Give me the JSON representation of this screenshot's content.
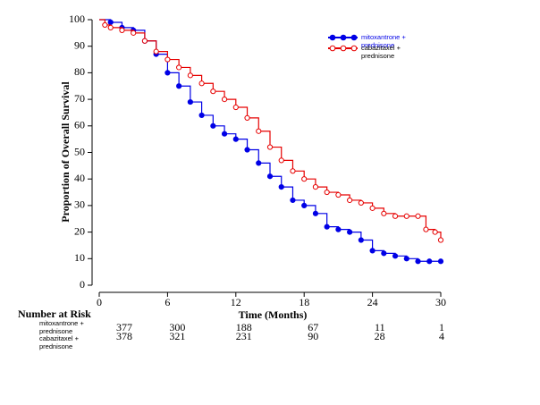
{
  "chart_data": {
    "type": "km",
    "x_label": "Time (Months)",
    "y_label": "Proportion of Overall Survival",
    "xlim": [
      0,
      30
    ],
    "ylim": [
      0,
      100
    ],
    "xticks": [
      0,
      6,
      12,
      18,
      24,
      30
    ],
    "yticks": [
      0,
      10,
      20,
      30,
      40,
      50,
      60,
      70,
      80,
      90,
      100
    ],
    "risk_title": "Number at Risk",
    "risk_times": [
      0,
      6,
      12,
      18,
      24,
      30
    ],
    "series": [
      {
        "name": "mitoxantrone + prednisone",
        "color": "#0000e6",
        "marker": "filled",
        "x": [
          0,
          1,
          2,
          3,
          4,
          5,
          6,
          7,
          8,
          9,
          10,
          11,
          12,
          13,
          14,
          15,
          16,
          17,
          18,
          19,
          20,
          21,
          22,
          23,
          24,
          25,
          26,
          27,
          28,
          29,
          30
        ],
        "values": [
          100,
          99,
          97,
          96,
          92,
          87,
          80,
          75,
          69,
          64,
          60,
          57,
          55,
          51,
          46,
          41,
          37,
          32,
          30,
          27,
          22,
          21,
          20,
          17,
          13,
          12,
          11,
          10,
          9,
          9,
          9
        ],
        "at_risk": [
          377,
          300,
          188,
          67,
          11,
          1
        ]
      },
      {
        "name": "cabazitaxel + prednisone",
        "color": "#e60000",
        "marker": "open",
        "x": [
          0,
          0.5,
          1,
          2,
          3,
          4,
          5,
          6,
          7,
          8,
          9,
          10,
          11,
          12,
          13,
          14,
          15,
          16,
          17,
          18,
          19,
          20,
          21,
          22,
          23,
          24,
          25,
          26,
          27,
          28,
          28.7,
          29.5,
          30
        ],
        "values": [
          100,
          98,
          97,
          96,
          95,
          92,
          88,
          85,
          82,
          79,
          76,
          73,
          70,
          67,
          63,
          58,
          52,
          47,
          43,
          40,
          37,
          35,
          34,
          32,
          31,
          29,
          27,
          26,
          26,
          26,
          21,
          20,
          17
        ],
        "at_risk": [
          378,
          321,
          231,
          90,
          28,
          4
        ]
      }
    ]
  }
}
